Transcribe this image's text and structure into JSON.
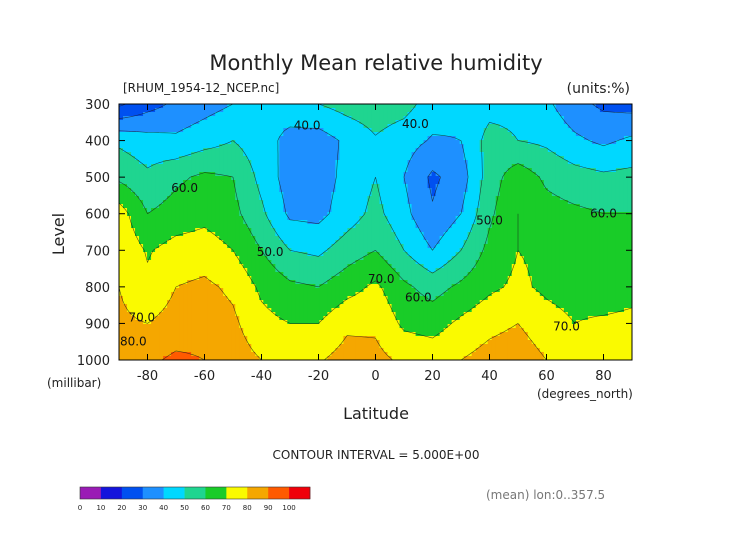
{
  "chart_data": {
    "type": "heatmap",
    "title": "Monthly Mean relative humidity",
    "file_label": "[RHUM_1954-12_NCEP.nc]",
    "units_label": "(units:%)",
    "ylabel": "Level",
    "y_unit_label": "(millibar)",
    "xlabel": "Latitude",
    "x_unit_label": "(degrees_north)",
    "x_ticks": [
      "-80",
      "-60",
      "-40",
      "-20",
      "0",
      "20",
      "40",
      "60",
      "80"
    ],
    "x_tick_values": [
      -80,
      -60,
      -40,
      -20,
      0,
      20,
      40,
      60,
      80
    ],
    "y_ticks": [
      "300",
      "400",
      "500",
      "600",
      "700",
      "800",
      "900",
      "1000"
    ],
    "y_tick_values": [
      300,
      400,
      500,
      600,
      700,
      800,
      900,
      1000
    ],
    "xlim": [
      -90,
      90
    ],
    "ylim": [
      1000,
      300
    ],
    "contour_interval_text": "CONTOUR INTERVAL = 5.000E+00",
    "mean_note": "(mean) lon:0..357.5",
    "contour_labels": [
      {
        "text": "40.0",
        "lat": -24,
        "level": 370
      },
      {
        "text": "40.0",
        "lat": 14,
        "level": 365
      },
      {
        "text": "60.0",
        "lat": -67,
        "level": 540
      },
      {
        "text": "50.0",
        "lat": -37,
        "level": 715
      },
      {
        "text": "50.0",
        "lat": 40,
        "level": 630
      },
      {
        "text": "60.0",
        "lat": 80,
        "level": 610
      },
      {
        "text": "70.0",
        "lat": 2,
        "level": 790
      },
      {
        "text": "60.0",
        "lat": 15,
        "level": 840
      },
      {
        "text": "70.0",
        "lat": -82,
        "level": 895
      },
      {
        "text": "80.0",
        "lat": -85,
        "level": 960
      },
      {
        "text": "70.0",
        "lat": 67,
        "level": 920
      }
    ],
    "colorbar": {
      "bounds": [
        "0",
        "10",
        "20",
        "30",
        "40",
        "50",
        "60",
        "70",
        "80",
        "90",
        "100"
      ],
      "colors": [
        "#9a1bb5",
        "#1414dc",
        "#0050f0",
        "#1e90ff",
        "#00d8ff",
        "#1fd590",
        "#19cc28",
        "#fafa00",
        "#f5a700",
        "#ff5a00",
        "#f0000a"
      ]
    },
    "field": {
      "lats": [
        -90,
        -80,
        -70,
        -60,
        -50,
        -40,
        -30,
        -20,
        -10,
        0,
        10,
        20,
        30,
        40,
        50,
        60,
        70,
        80,
        90
      ],
      "levels": [
        300,
        400,
        500,
        600,
        700,
        800,
        900,
        1000
      ],
      "values": [
        [
          18,
          26,
          32,
          36,
          40,
          42,
          45,
          50,
          54,
          56,
          54,
          45,
          42,
          46,
          47,
          42,
          33,
          28,
          26
        ],
        [
          48,
          44,
          42,
          46,
          50,
          44,
          37,
          35,
          42,
          49,
          44,
          39,
          40,
          54,
          50,
          48,
          42,
          38,
          42
        ],
        [
          58,
          52,
          58,
          62,
          60,
          47,
          35,
          35,
          43,
          50,
          40,
          28,
          35,
          55,
          66,
          58,
          54,
          52,
          53
        ],
        [
          75,
          60,
          64,
          67,
          63,
          52,
          38,
          37,
          45,
          53,
          43,
          31,
          40,
          58,
          70,
          64,
          62,
          60,
          60
        ],
        [
          78,
          69,
          74,
          75,
          70,
          60,
          50,
          48,
          55,
          60,
          50,
          40,
          50,
          63,
          70,
          68,
          62,
          62,
          64
        ],
        [
          80,
          72,
          80,
          82,
          78,
          68,
          62,
          60,
          66,
          72,
          62,
          56,
          62,
          68,
          72,
          68,
          66,
          63,
          66
        ],
        [
          82,
          80,
          84,
          86,
          82,
          73,
          70,
          70,
          78,
          78,
          68,
          66,
          72,
          77,
          80,
          74,
          70,
          72,
          73
        ],
        [
          86,
          88,
          92,
          90,
          85,
          80,
          78,
          79,
          84,
          83,
          78,
          76,
          80,
          84,
          86,
          80,
          75,
          76,
          78
        ]
      ]
    }
  }
}
